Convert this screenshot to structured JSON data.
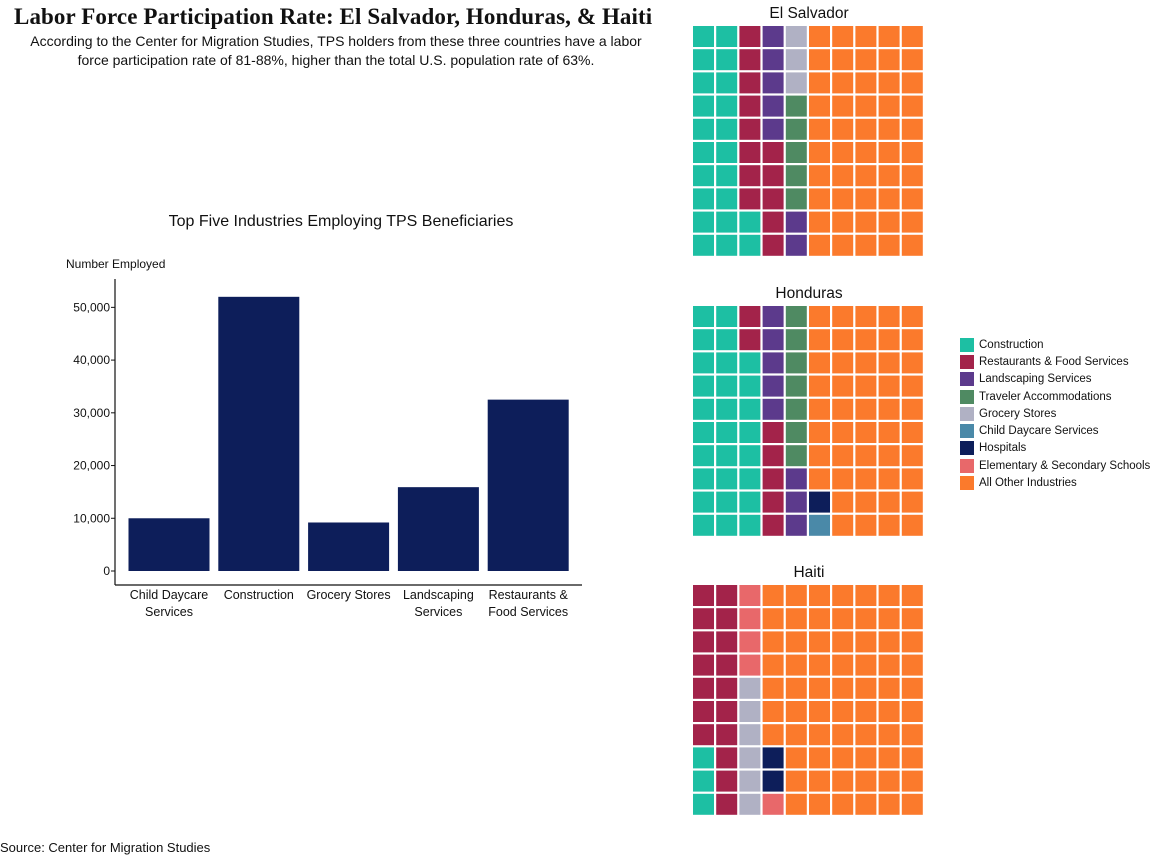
{
  "header": {
    "title": "Labor Force Participation Rate: El Salvador, Honduras, & Haiti",
    "subtitle_line1": "According to the Center for Migration Studies, TPS holders from these three countries have a labor",
    "subtitle_line2": "force participation rate of 81-88%, higher than the total U.S. population rate of 63%."
  },
  "source": "Source: Center for Migration Studies",
  "colors": {
    "bar": "#0d1e5a",
    "C": "#1dbfa3",
    "R": "#a3234a",
    "L": "#5c3a8c",
    "T": "#4f8a62",
    "G": "#b0b1c4",
    "D": "#4a89a8",
    "H": "#0d1e5a",
    "E": "#e8686a",
    "O": "#fb7a2c"
  },
  "legend": [
    {
      "key": "C",
      "label": "Construction"
    },
    {
      "key": "R",
      "label": "Restaurants & Food Services"
    },
    {
      "key": "L",
      "label": "Landscaping Services"
    },
    {
      "key": "T",
      "label": "Traveler Accommodations"
    },
    {
      "key": "G",
      "label": "Grocery Stores"
    },
    {
      "key": "D",
      "label": "Child Daycare Services"
    },
    {
      "key": "H",
      "label": "Hospitals"
    },
    {
      "key": "E",
      "label": "Elementary & Secondary Schools"
    },
    {
      "key": "O",
      "label": "All Other Industries"
    }
  ],
  "chart_data": [
    {
      "type": "bar",
      "title": "Top Five Industries Employing TPS Beneficiaries",
      "ylabel": "Number Employed",
      "xlabel": "",
      "categories": [
        [
          "Child Daycare",
          "Services"
        ],
        [
          "Construction"
        ],
        [
          "Grocery Stores"
        ],
        [
          "Landscaping",
          "Services"
        ],
        [
          "Restaurants &",
          "Food Services"
        ]
      ],
      "values": [
        10000,
        52000,
        9200,
        15900,
        32500
      ],
      "yticks": [
        0,
        10000,
        20000,
        30000,
        40000,
        50000
      ],
      "ytick_labels": [
        "0",
        "10,000",
        "20,000",
        "30,000",
        "40,000",
        "50,000"
      ],
      "ylim": [
        0,
        55000
      ]
    },
    {
      "type": "waffle",
      "title": "El Salvador",
      "grid_rows": 10,
      "grid_cols": 10,
      "columns": [
        "CCCCCCCCCC",
        "CCCCCCCCCC",
        "RRRRRRRRCC",
        "LLLLLRRRRR",
        "GGGTTTTTLL",
        "OOOOOOOOOO",
        "OOOOOOOOOO",
        "OOOOOOOOOO",
        "OOOOOOOOOO",
        "OOOOOOOOOO"
      ]
    },
    {
      "type": "waffle",
      "title": "Honduras",
      "grid_rows": 10,
      "grid_cols": 10,
      "columns": [
        "CCCCCCCCCC",
        "CCCCCCCCCC",
        "RRCCCCCCCC",
        "LLLLLRRRRR",
        "TTTTTTTLLL",
        "OOOOOOOOHD",
        "OOOOOOOOOO",
        "OOOOOOOOOO",
        "OOOOOOOOOO",
        "OOOOOOOOOO"
      ]
    },
    {
      "type": "waffle",
      "title": "Haiti",
      "grid_rows": 10,
      "grid_cols": 10,
      "columns": [
        "RRRRRRRCCC",
        "RRRRRRRRRR",
        "EEEEGGGGGG",
        "OOOOOOOHHE",
        "OOOOOOOOOO",
        "OOOOOOOOOO",
        "OOOOOOOOOO",
        "OOOOOOOOOO",
        "OOOOOOOOOO",
        "OOOOOOOOOO"
      ]
    }
  ]
}
